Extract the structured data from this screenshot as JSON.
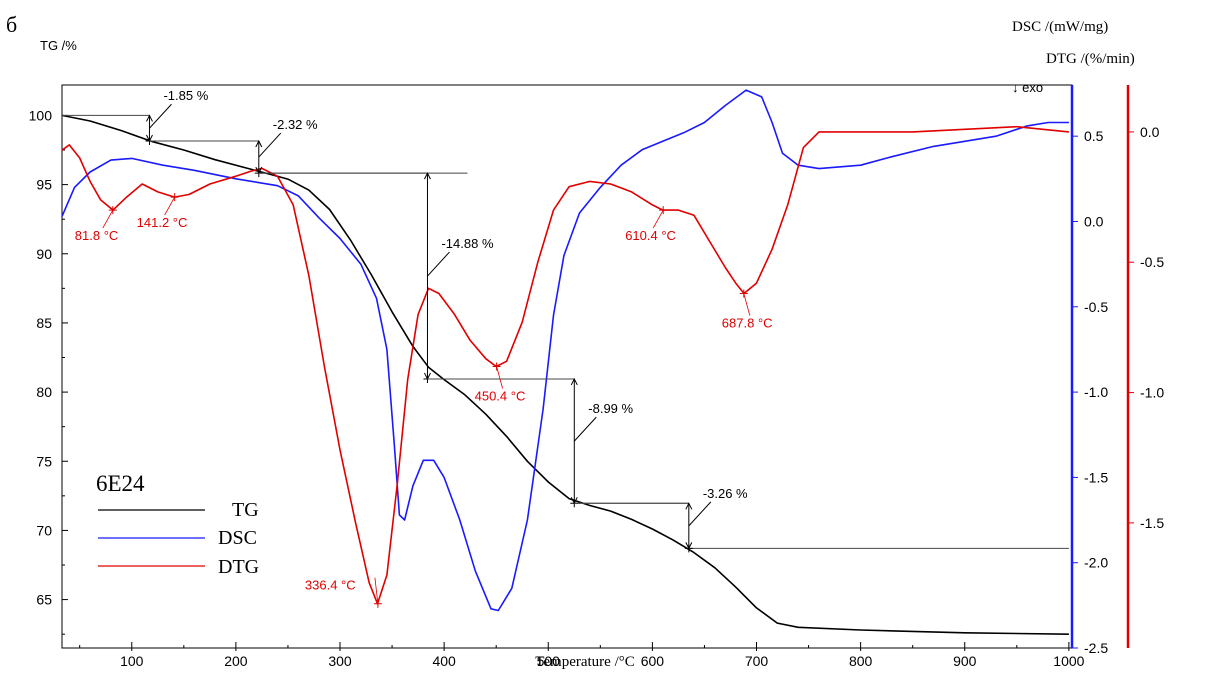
{
  "panel_label": "б",
  "chart_data": {
    "type": "line",
    "sample_label": "6E24",
    "exo_label": "↓ exo",
    "xlabel": "Temperature /°C",
    "xlim": [
      33,
      1003
    ],
    "x_ticks": [
      100,
      200,
      300,
      400,
      500,
      600,
      700,
      800,
      900,
      1000
    ],
    "axes": {
      "tg": {
        "label": "TG /%",
        "ylim": [
          61.5,
          102.2
        ],
        "ticks": [
          65,
          70,
          75,
          80,
          85,
          90,
          95,
          100
        ],
        "color": "#000000"
      },
      "dsc": {
        "label": "DSC /(mW/mg)",
        "ylim": [
          -2.5,
          0.8
        ],
        "ticks": [
          -2.5,
          -2.0,
          -1.5,
          -1.0,
          -0.5,
          0.0,
          0.5
        ],
        "tick_labels": [
          "-2.5",
          "-2.0",
          "-1.5",
          "-1.0",
          "-0.5",
          "0.0",
          "0.5"
        ],
        "color": "#1a1aff"
      },
      "dtg": {
        "label": "DTG /(%/min)",
        "ylim": [
          -1.98,
          0.18
        ],
        "ticks": [
          -1.5,
          -1.0,
          -0.5,
          0.0
        ],
        "tick_labels": [
          "-1.5",
          "-1.0",
          "-0.5",
          "0.0"
        ],
        "color": "#e00000"
      }
    },
    "series": [
      {
        "name": "TG",
        "axis": "tg",
        "color": "#000000",
        "points": [
          [
            33,
            100
          ],
          [
            60,
            99.6
          ],
          [
            90,
            98.9
          ],
          [
            120,
            98.1
          ],
          [
            150,
            97.5
          ],
          [
            180,
            96.8
          ],
          [
            210,
            96.2
          ],
          [
            230,
            95.8
          ],
          [
            250,
            95.4
          ],
          [
            270,
            94.6
          ],
          [
            290,
            93.2
          ],
          [
            310,
            91.0
          ],
          [
            330,
            88.5
          ],
          [
            350,
            85.8
          ],
          [
            370,
            83.3
          ],
          [
            385,
            81.8
          ],
          [
            400,
            80.9
          ],
          [
            420,
            79.8
          ],
          [
            440,
            78.4
          ],
          [
            460,
            76.8
          ],
          [
            480,
            75.0
          ],
          [
            500,
            73.5
          ],
          [
            520,
            72.3
          ],
          [
            540,
            71.8
          ],
          [
            560,
            71.4
          ],
          [
            580,
            70.8
          ],
          [
            600,
            70.1
          ],
          [
            620,
            69.3
          ],
          [
            640,
            68.4
          ],
          [
            660,
            67.3
          ],
          [
            680,
            65.9
          ],
          [
            700,
            64.4
          ],
          [
            720,
            63.3
          ],
          [
            740,
            63.0
          ],
          [
            800,
            62.8
          ],
          [
            900,
            62.6
          ],
          [
            1000,
            62.5
          ]
        ]
      },
      {
        "name": "DSC",
        "axis": "dsc",
        "color": "#1a1aff",
        "points": [
          [
            33,
            0.03
          ],
          [
            45,
            0.2
          ],
          [
            60,
            0.29
          ],
          [
            80,
            0.36
          ],
          [
            100,
            0.37
          ],
          [
            130,
            0.33
          ],
          [
            160,
            0.3
          ],
          [
            200,
            0.25
          ],
          [
            240,
            0.21
          ],
          [
            260,
            0.15
          ],
          [
            280,
            0.02
          ],
          [
            300,
            -0.1
          ],
          [
            320,
            -0.25
          ],
          [
            335,
            -0.45
          ],
          [
            345,
            -0.75
          ],
          [
            352,
            -1.3
          ],
          [
            357,
            -1.72
          ],
          [
            362,
            -1.75
          ],
          [
            370,
            -1.55
          ],
          [
            380,
            -1.4
          ],
          [
            390,
            -1.4
          ],
          [
            400,
            -1.5
          ],
          [
            415,
            -1.75
          ],
          [
            430,
            -2.05
          ],
          [
            445,
            -2.27
          ],
          [
            452,
            -2.28
          ],
          [
            465,
            -2.15
          ],
          [
            480,
            -1.75
          ],
          [
            495,
            -1.1
          ],
          [
            505,
            -0.55
          ],
          [
            515,
            -0.2
          ],
          [
            530,
            0.05
          ],
          [
            550,
            0.2
          ],
          [
            570,
            0.33
          ],
          [
            590,
            0.42
          ],
          [
            610,
            0.47
          ],
          [
            630,
            0.52
          ],
          [
            650,
            0.58
          ],
          [
            670,
            0.68
          ],
          [
            690,
            0.77
          ],
          [
            705,
            0.73
          ],
          [
            715,
            0.58
          ],
          [
            725,
            0.4
          ],
          [
            740,
            0.33
          ],
          [
            760,
            0.31
          ],
          [
            800,
            0.33
          ],
          [
            830,
            0.38
          ],
          [
            870,
            0.44
          ],
          [
            900,
            0.47
          ],
          [
            930,
            0.5
          ],
          [
            960,
            0.56
          ],
          [
            980,
            0.58
          ],
          [
            1000,
            0.58
          ]
        ]
      },
      {
        "name": "DTG",
        "axis": "dtg",
        "color": "#e00000",
        "points": [
          [
            33,
            -0.07
          ],
          [
            40,
            -0.05
          ],
          [
            50,
            -0.1
          ],
          [
            60,
            -0.19
          ],
          [
            70,
            -0.26
          ],
          [
            82,
            -0.3
          ],
          [
            95,
            -0.25
          ],
          [
            110,
            -0.2
          ],
          [
            125,
            -0.23
          ],
          [
            141,
            -0.25
          ],
          [
            155,
            -0.24
          ],
          [
            175,
            -0.2
          ],
          [
            200,
            -0.17
          ],
          [
            215,
            -0.15
          ],
          [
            225,
            -0.14
          ],
          [
            240,
            -0.17
          ],
          [
            255,
            -0.28
          ],
          [
            270,
            -0.55
          ],
          [
            285,
            -0.9
          ],
          [
            300,
            -1.22
          ],
          [
            315,
            -1.5
          ],
          [
            328,
            -1.73
          ],
          [
            336,
            -1.81
          ],
          [
            345,
            -1.7
          ],
          [
            355,
            -1.35
          ],
          [
            365,
            -0.95
          ],
          [
            375,
            -0.7
          ],
          [
            385,
            -0.6
          ],
          [
            395,
            -0.62
          ],
          [
            410,
            -0.7
          ],
          [
            425,
            -0.8
          ],
          [
            440,
            -0.87
          ],
          [
            450,
            -0.9
          ],
          [
            460,
            -0.88
          ],
          [
            475,
            -0.73
          ],
          [
            490,
            -0.5
          ],
          [
            505,
            -0.3
          ],
          [
            520,
            -0.21
          ],
          [
            540,
            -0.19
          ],
          [
            560,
            -0.2
          ],
          [
            580,
            -0.23
          ],
          [
            600,
            -0.28
          ],
          [
            610,
            -0.3
          ],
          [
            625,
            -0.3
          ],
          [
            640,
            -0.32
          ],
          [
            655,
            -0.42
          ],
          [
            670,
            -0.52
          ],
          [
            680,
            -0.58
          ],
          [
            688,
            -0.62
          ],
          [
            700,
            -0.58
          ],
          [
            715,
            -0.45
          ],
          [
            730,
            -0.28
          ],
          [
            745,
            -0.06
          ],
          [
            760,
            0.0
          ],
          [
            800,
            0.0
          ],
          [
            850,
            0.0
          ],
          [
            900,
            0.01
          ],
          [
            950,
            0.02
          ],
          [
            1000,
            0.0
          ]
        ]
      }
    ],
    "peak_annotations": [
      {
        "text": "81.8 °C",
        "series": "DTG",
        "x": 81.8,
        "y": -0.3
      },
      {
        "text": "141.2 °C",
        "series": "DTG",
        "x": 141.2,
        "y": -0.25
      },
      {
        "text": "336.4 °C",
        "series": "DTG",
        "x": 336.4,
        "y": -1.81
      },
      {
        "text": "450.4 °C",
        "series": "DTG",
        "x": 450.4,
        "y": -0.9
      },
      {
        "text": "610.4 °C",
        "series": "DTG",
        "x": 610.4,
        "y": -0.3
      },
      {
        "text": "687.8 °C",
        "series": "DTG",
        "x": 687.8,
        "y": -0.62
      }
    ],
    "mass_loss_steps": [
      {
        "text": "-1.85 %",
        "x": 117,
        "from": 100.0,
        "to": 98.15
      },
      {
        "text": "-2.32 %",
        "x": 222,
        "from": 98.15,
        "to": 95.83
      },
      {
        "text": "-14.88 %",
        "x": 384,
        "from": 95.83,
        "to": 80.95
      },
      {
        "text": "-8.99 %",
        "x": 525,
        "from": 80.95,
        "to": 71.96
      },
      {
        "text": "-3.26 %",
        "x": 635,
        "from": 71.96,
        "to": 68.7
      }
    ],
    "legend": [
      "TG",
      "DSC",
      "DTG"
    ],
    "grid": false
  }
}
